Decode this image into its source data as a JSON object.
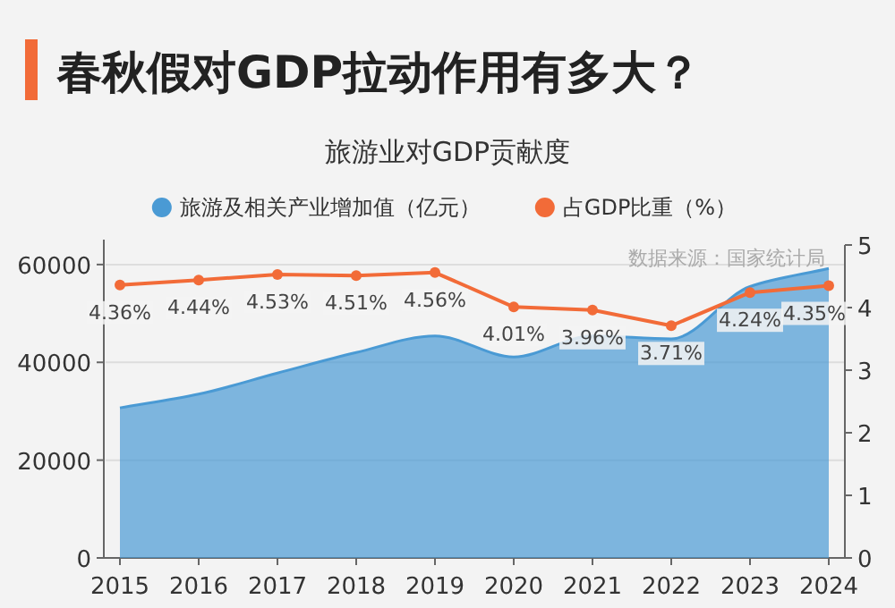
{
  "chart_data": {
    "type": "area",
    "title": "春秋假对GDP拉动作用有多大？",
    "subtitle": "旅游业对GDP贡献度",
    "categories": [
      "2015",
      "2016",
      "2017",
      "2018",
      "2019",
      "2020",
      "2021",
      "2022",
      "2023",
      "2024"
    ],
    "series": [
      {
        "name": "旅游及相关产业增加值（亿元）",
        "color": "#4a9ad4",
        "values": [
          30700,
          33500,
          37800,
          42000,
          45400,
          41100,
          45400,
          44800,
          55500,
          59200
        ]
      },
      {
        "name": "占GDP比重（%）",
        "type": "line",
        "marker": "circle",
        "axis": "y2",
        "color": "#f26b38",
        "values": [
          4.36,
          4.44,
          4.53,
          4.51,
          4.56,
          4.01,
          3.96,
          3.71,
          4.24,
          4.35
        ],
        "value_labels": [
          "4.36%",
          "4.44%",
          "4.53%",
          "4.51%",
          "4.56%",
          "4.01%",
          "3.96%",
          "3.71%",
          "4.24%",
          "4.35%"
        ]
      }
    ],
    "ylim": [
      0,
      64000
    ],
    "yticks": [
      0,
      20000,
      40000,
      60000
    ],
    "y2lim": [
      0,
      5
    ],
    "y2ticks": [
      0,
      1,
      2,
      3,
      4,
      5
    ],
    "grid": "y",
    "legend": "top",
    "annotations": [
      "数据来源：国家统计局"
    ]
  }
}
